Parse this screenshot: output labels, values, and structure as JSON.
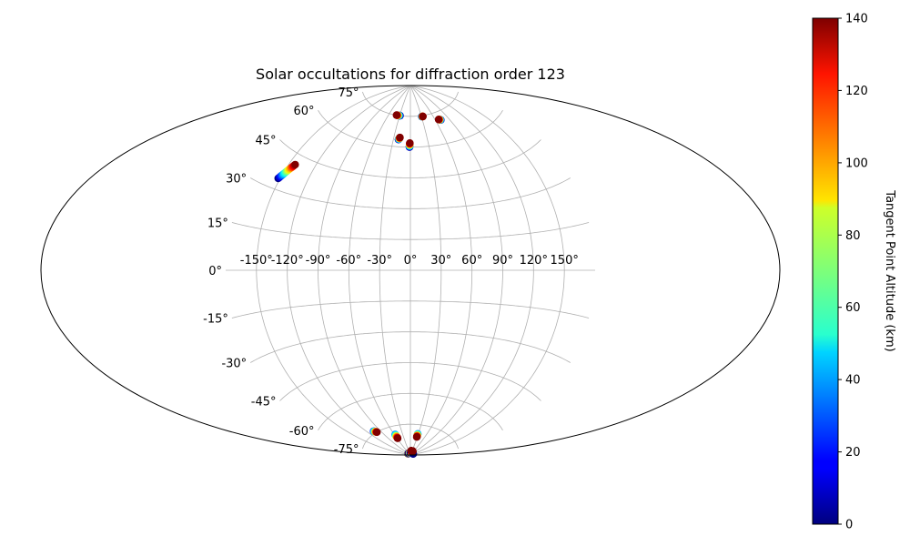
{
  "chart_data": {
    "type": "scatter",
    "projection": "aitoff",
    "title": "Solar occultations for diffraction order 123",
    "lon_ticks": [
      "-150°",
      "-120°",
      "-90°",
      "-60°",
      "-30°",
      "0°",
      "30°",
      "60°",
      "90°",
      "120°",
      "150°"
    ],
    "lat_ticks": [
      "75°",
      "60°",
      "45°",
      "30°",
      "15°",
      "0°",
      "-15°",
      "-30°",
      "-45°",
      "-60°",
      "-75°"
    ],
    "grid": true,
    "colorbar": {
      "label": "Tangent Point Altitude (km)",
      "range": [
        0,
        140
      ],
      "ticks": [
        "0",
        "20",
        "40",
        "60",
        "80",
        "100",
        "120",
        "140"
      ],
      "colormap": "jet"
    },
    "tracks": [
      {
        "lon_start": -152,
        "lat_start": 34,
        "lon_end": -143,
        "lat_end": 41,
        "alt_start": 0,
        "alt_end": 140
      },
      {
        "lon_start": -29,
        "lat_start": 75,
        "lon_end": -39,
        "lat_end": 75,
        "alt_start": 0,
        "alt_end": 140
      },
      {
        "lon_start": -21,
        "lat_start": 63.5,
        "lon_end": -19,
        "lat_end": 64.5,
        "alt_start": 0,
        "alt_end": 140
      },
      {
        "lon_start": -1.5,
        "lat_start": 60,
        "lon_end": -1,
        "lat_end": 62,
        "alt_start": 0,
        "alt_end": 140
      },
      {
        "lon_start": 31,
        "lat_start": 74.5,
        "lon_end": 34,
        "lat_end": 74.5,
        "alt_start": 0,
        "alt_end": 140
      },
      {
        "lon_start": 72,
        "lat_start": 71,
        "lon_end": 68,
        "lat_end": 71.5,
        "alt_start": 0,
        "alt_end": 140
      },
      {
        "lon_start": -106,
        "lat_start": -74,
        "lon_end": -101,
        "lat_end": -75,
        "alt_start": 20,
        "alt_end": 140
      },
      {
        "lon_start": -57,
        "lat_start": -79,
        "lon_end": -57,
        "lat_end": -81,
        "alt_start": 30,
        "alt_end": 140
      },
      {
        "lon_start": 28,
        "lat_start": -79.5,
        "lon_end": 28,
        "lat_end": -81,
        "alt_start": 30,
        "alt_end": 140
      },
      {
        "lon_start": -107,
        "lat_start": -89,
        "lon_end": -70,
        "lat_end": -89,
        "alt_start": 140,
        "alt_end": 0
      },
      {
        "lon_start": -40,
        "lat_start": -89,
        "lon_end": 10,
        "lat_end": -89,
        "alt_start": 140,
        "alt_end": 0
      },
      {
        "lon_start": 32,
        "lat_start": -89,
        "lon_end": 120,
        "lat_end": -89,
        "alt_start": 140,
        "alt_end": 0
      },
      {
        "lon_start": 15,
        "lat_start": -88,
        "lon_end": 15,
        "lat_end": -88,
        "alt_start": 140,
        "alt_end": 140
      },
      {
        "lon_start": 42,
        "lat_start": -88,
        "lon_end": 42,
        "lat_end": -88,
        "alt_start": 140,
        "alt_end": 140
      }
    ]
  }
}
